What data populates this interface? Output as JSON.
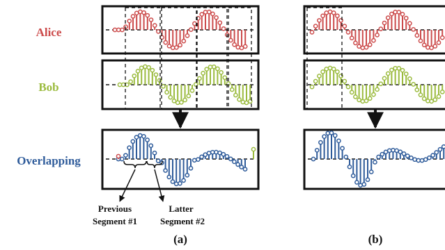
{
  "rows": [
    {
      "name": "Alice",
      "color": "#cc4b4b"
    },
    {
      "name": "Bob",
      "color": "#9bbb3e"
    },
    {
      "name": "Overlapping",
      "color": "#2e5b9a"
    }
  ],
  "annotations": {
    "previous": [
      "Previous",
      "Segment #1"
    ],
    "latter": [
      "Latter",
      "Segment #2"
    ]
  },
  "panels": [
    "(a)",
    "(b)"
  ],
  "colors": {
    "alice": "#cc4b4b",
    "bob": "#9bbb3e",
    "overlap": "#2e5b9a",
    "frame": "#111111"
  }
}
